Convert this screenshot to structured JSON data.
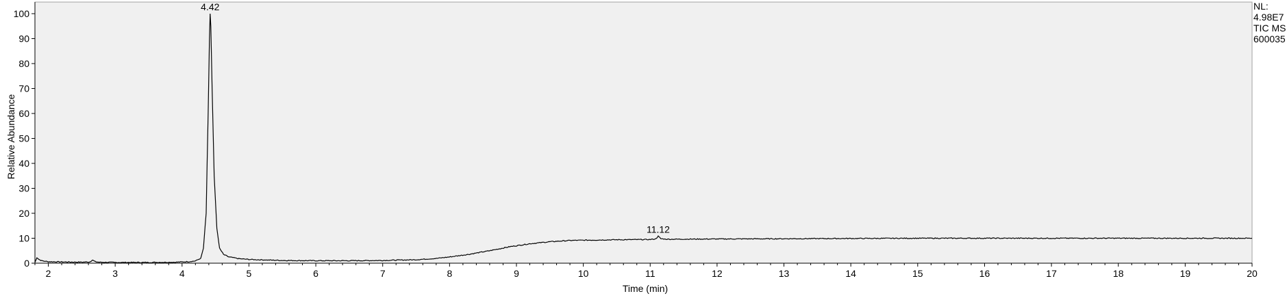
{
  "chart_data": {
    "type": "line",
    "xlabel": "Time (min)",
    "ylabel": "Relative Abundance",
    "xlim": [
      1.8,
      20
    ],
    "ylim": [
      0,
      100
    ],
    "x_ticks": [
      2,
      3,
      4,
      5,
      6,
      7,
      8,
      9,
      10,
      11,
      12,
      13,
      14,
      15,
      16,
      17,
      18,
      19,
      20
    ],
    "y_ticks": [
      0,
      10,
      20,
      30,
      40,
      50,
      60,
      70,
      80,
      90,
      100
    ],
    "grid": false,
    "plot_background": "#f0f0f0",
    "line_color": "#000000",
    "side_note": [
      "NL:",
      "4.98E7",
      "TIC  MS",
      "600035"
    ],
    "peak_labels": [
      {
        "x": 4.42,
        "y": 100,
        "label": "4.42"
      },
      {
        "x": 11.12,
        "y": 10.8,
        "label": "11.12"
      }
    ],
    "series": [
      {
        "x": [
          1.8,
          1.83,
          1.86,
          1.9,
          1.95,
          2.0,
          2.2,
          2.5,
          2.62,
          2.66,
          2.7,
          2.75,
          3.0,
          3.5,
          3.9,
          4.1,
          4.2,
          4.28,
          4.32,
          4.36,
          4.39,
          4.41,
          4.42,
          4.43,
          4.45,
          4.48,
          4.52,
          4.56,
          4.62,
          4.7,
          4.85,
          5.0,
          5.5,
          6.0,
          6.5,
          7.0,
          7.5,
          7.8,
          8.0,
          8.3,
          8.6,
          8.9,
          9.2,
          9.5,
          9.8,
          10.0,
          10.5,
          11.0,
          11.08,
          11.12,
          11.16,
          11.25,
          12.0,
          13.0,
          14.0,
          15.0,
          16.0,
          17.0,
          18.0,
          19.0,
          20.0
        ],
        "y": [
          0.3,
          2.3,
          1.5,
          1.0,
          0.8,
          0.6,
          0.5,
          0.4,
          0.5,
          1.3,
          0.6,
          0.4,
          0.3,
          0.3,
          0.4,
          0.6,
          0.9,
          2.0,
          6.0,
          20.0,
          60.0,
          90.0,
          100.0,
          95.0,
          70.0,
          35.0,
          14.0,
          6.0,
          3.5,
          2.5,
          1.8,
          1.5,
          1.1,
          1.0,
          1.0,
          1.1,
          1.4,
          1.9,
          2.5,
          3.6,
          5.0,
          6.6,
          7.8,
          8.6,
          9.1,
          9.2,
          9.4,
          9.5,
          9.7,
          10.8,
          9.8,
          9.6,
          9.7,
          9.8,
          9.9,
          10.0,
          10.0,
          10.0,
          10.0,
          10.0,
          10.0
        ]
      }
    ]
  }
}
